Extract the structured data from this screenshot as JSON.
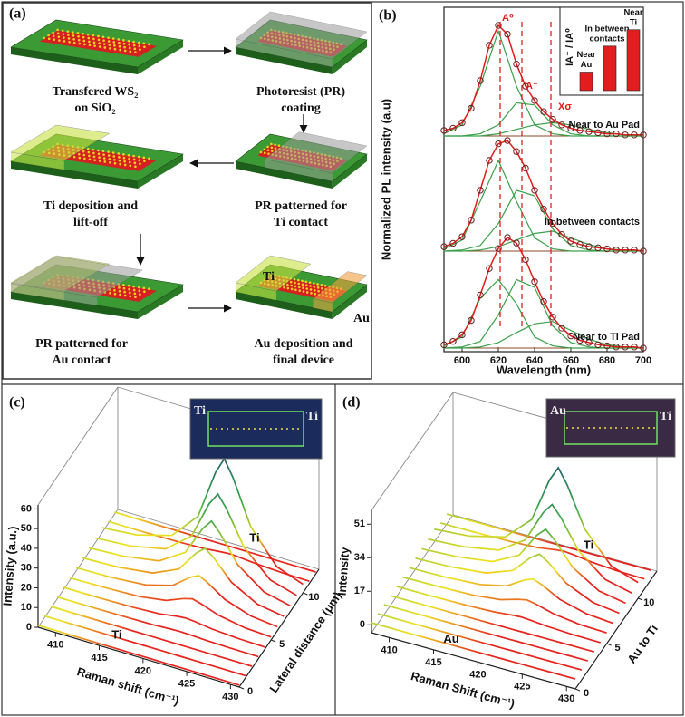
{
  "panel_a": {
    "label": "(a)",
    "steps": [
      {
        "lines": [
          "Transfered WS₂",
          "on SiO₂"
        ]
      },
      {
        "lines": [
          "Photoresist (PR)",
          "coating"
        ]
      },
      {
        "lines": [
          "PR patterned for",
          "Ti contact"
        ]
      },
      {
        "lines": [
          "Ti deposition and",
          "lift-off"
        ]
      },
      {
        "lines": [
          "PR patterned for",
          "Au contact"
        ]
      },
      {
        "lines": [
          "Au deposition and",
          "final device"
        ]
      }
    ],
    "device_labels": [
      "Ti",
      "Au"
    ]
  },
  "chart_data": [
    {
      "type": "pl_spectra",
      "label": "(b)",
      "xlabel": "Wavelength (nm)",
      "ylabel": "Normalized PL intensity (a.u)",
      "xlim": [
        590,
        700
      ],
      "xticks": [
        600,
        620,
        640,
        660,
        680,
        700
      ],
      "x": [
        590,
        595,
        600,
        605,
        610,
        615,
        620,
        625,
        630,
        635,
        640,
        645,
        650,
        655,
        660,
        665,
        670,
        675,
        680,
        685,
        690,
        695,
        700
      ],
      "component_x": [
        590,
        600,
        610,
        620,
        630,
        640,
        650,
        660,
        670,
        680,
        690,
        700
      ],
      "markers": [
        {
          "value": 621,
          "label": "A⁰"
        },
        {
          "value": 633,
          "label": "A⁻"
        },
        {
          "value": 649,
          "label": "Xσ"
        }
      ],
      "data_color": "#6b1e1e",
      "fit_color": "#e21d1d",
      "component_color": "#3aa04a",
      "baseline_color": "#8b4a2a",
      "marker_color": "#e21d1d",
      "series": [
        {
          "name": "Near to Au Pad",
          "values": [
            0.05,
            0.07,
            0.12,
            0.25,
            0.5,
            0.82,
            1.0,
            0.92,
            0.65,
            0.45,
            0.32,
            0.22,
            0.15,
            0.1,
            0.07,
            0.05,
            0.04,
            0.03,
            0.02,
            0.02,
            0.01,
            0.01,
            0.01
          ],
          "components": [
            [
              0.02,
              0.1,
              0.45,
              0.95,
              0.45,
              0.1,
              0.02,
              0,
              0,
              0,
              0,
              0
            ],
            [
              0,
              0,
              0.02,
              0.1,
              0.3,
              0.28,
              0.1,
              0.02,
              0,
              0,
              0,
              0
            ],
            [
              0,
              0,
              0,
              0.02,
              0.06,
              0.1,
              0.12,
              0.1,
              0.06,
              0.03,
              0.01,
              0
            ]
          ]
        },
        {
          "name": "In between contacts",
          "values": [
            0.04,
            0.07,
            0.13,
            0.28,
            0.55,
            0.82,
            0.97,
            1.0,
            0.9,
            0.75,
            0.55,
            0.38,
            0.25,
            0.15,
            0.09,
            0.06,
            0.04,
            0.03,
            0.02,
            0.01,
            0.01,
            0.01,
            0
          ],
          "components": [
            [
              0.02,
              0.1,
              0.45,
              0.82,
              0.45,
              0.12,
              0.02,
              0,
              0,
              0,
              0,
              0
            ],
            [
              0,
              0.01,
              0.05,
              0.25,
              0.55,
              0.5,
              0.2,
              0.05,
              0.01,
              0,
              0,
              0
            ],
            [
              0,
              0,
              0.01,
              0.04,
              0.1,
              0.16,
              0.18,
              0.12,
              0.06,
              0.02,
              0.01,
              0
            ]
          ]
        },
        {
          "name": "Near to Ti Pad",
          "values": [
            0.03,
            0.06,
            0.12,
            0.25,
            0.48,
            0.72,
            0.9,
            1.0,
            0.95,
            0.8,
            0.6,
            0.42,
            0.28,
            0.18,
            0.11,
            0.07,
            0.05,
            0.03,
            0.02,
            0.01,
            0.01,
            0.01,
            0
          ],
          "components": [
            [
              0.02,
              0.1,
              0.45,
              0.62,
              0.4,
              0.1,
              0.02,
              0,
              0,
              0,
              0,
              0
            ],
            [
              0,
              0.01,
              0.06,
              0.3,
              0.62,
              0.55,
              0.2,
              0.05,
              0.01,
              0,
              0,
              0
            ],
            [
              0,
              0,
              0.01,
              0.05,
              0.14,
              0.22,
              0.24,
              0.16,
              0.08,
              0.03,
              0.01,
              0
            ]
          ]
        }
      ]
    },
    {
      "type": "bar",
      "ylabel": "IA⁻ / IA⁰",
      "categories": [
        [
          "Near",
          "Au"
        ],
        [
          "In between",
          "contacts"
        ],
        [
          "Near",
          "Ti"
        ]
      ],
      "values": [
        0.25,
        0.6,
        0.82
      ],
      "ylim": [
        0,
        1
      ],
      "color": "#e21d1d"
    },
    {
      "type": "waterfall3d",
      "label": "(c)",
      "xlabel": "Raman shift (cm⁻¹)",
      "ylabel": "Intensity (a.u.)",
      "zlabel": "Lateral distance (μm)",
      "xlim": [
        408,
        431
      ],
      "xticks": [
        410,
        415,
        420,
        425,
        430
      ],
      "ylim": [
        0,
        62
      ],
      "yticks": [
        0,
        10,
        20,
        30,
        40,
        50,
        60
      ],
      "zlim": [
        0,
        12.5
      ],
      "zticks": [
        0,
        5,
        10
      ],
      "front_label": "Ti",
      "back_label": "Ti",
      "inset_labels": [
        "Ti",
        "Ti"
      ],
      "colormap": [
        "#e8231c",
        "#f0e21e",
        "#3da84a",
        "#1d5c6e"
      ],
      "x": [
        408,
        412,
        416,
        419,
        421,
        422,
        423,
        425,
        428,
        431
      ],
      "z": [
        0,
        1,
        2,
        3,
        4,
        5,
        6,
        7,
        8,
        9,
        10,
        11,
        12
      ],
      "traces": [
        [
          1,
          1,
          1,
          1,
          1,
          1,
          1,
          1,
          1,
          1
        ],
        [
          1,
          1,
          1,
          1,
          1,
          1,
          1,
          1,
          1,
          1
        ],
        [
          1,
          1,
          1,
          1,
          1,
          1,
          1,
          1,
          1,
          1
        ],
        [
          1,
          1.1,
          1.2,
          1.4,
          1.9,
          2,
          1.9,
          1.5,
          1.2,
          1.1
        ],
        [
          1.1,
          1.2,
          1.5,
          2.2,
          3.6,
          4,
          3.6,
          2.4,
          1.5,
          1.2
        ],
        [
          1.2,
          1.5,
          2.2,
          4.2,
          7.8,
          9,
          7.8,
          4.6,
          2.2,
          1.5
        ],
        [
          1.5,
          1.9,
          3.3,
          7,
          13.8,
          16,
          13.8,
          7.8,
          3.3,
          1.9
        ],
        [
          1.7,
          2.4,
          4.6,
          10.6,
          21.4,
          25,
          21.4,
          11.8,
          4.6,
          2.4
        ],
        [
          2,
          3,
          6,
          14.2,
          29,
          34,
          29,
          15.9,
          6,
          3
        ],
        [
          2.3,
          3.5,
          7.3,
          17.8,
          36.7,
          43,
          36.7,
          19.9,
          7.3,
          3.5
        ],
        [
          2.7,
          4.3,
          9.3,
          23,
          47.8,
          56,
          47.8,
          25.8,
          9.3,
          4.3
        ],
        [
          1.1,
          1.1,
          1.3,
          1.8,
          2.7,
          3,
          2.7,
          1.9,
          1.3,
          1.1
        ],
        [
          1,
          1,
          1,
          1,
          1,
          1,
          1,
          1,
          1,
          1
        ]
      ]
    },
    {
      "type": "waterfall3d",
      "label": "(d)",
      "xlabel": "Raman Shift (cm⁻¹)",
      "ylabel": "Intensity",
      "zlabel": "Au to Ti",
      "xlim": [
        408,
        431
      ],
      "xticks": [
        410,
        415,
        420,
        425,
        430
      ],
      "ylim": [
        -4,
        58
      ],
      "yticks": [
        0,
        17,
        34,
        51
      ],
      "zlim": [
        0,
        13
      ],
      "zticks": [
        0,
        5,
        10
      ],
      "front_label": "Au",
      "back_label": "Ti",
      "inset_labels": [
        "Au",
        "Ti"
      ],
      "colormap": [
        "#e8231c",
        "#f0e21e",
        "#3da84a",
        "#1d5c6e"
      ],
      "x": [
        408,
        412,
        416,
        419,
        421,
        422,
        423,
        425,
        428,
        431
      ],
      "z": [
        0,
        1,
        2,
        3,
        4,
        5,
        6,
        7,
        8,
        9,
        10,
        11,
        12
      ],
      "traces": [
        [
          1,
          1,
          1,
          1,
          1,
          1,
          1,
          1,
          1,
          1
        ],
        [
          1,
          1,
          1,
          1,
          1,
          1,
          1,
          1,
          1,
          1
        ],
        [
          1,
          1,
          1,
          1,
          1,
          1,
          1,
          1,
          1,
          1
        ],
        [
          1,
          1,
          1,
          1,
          1,
          1,
          1,
          1,
          1,
          1
        ],
        [
          1.1,
          1.1,
          1.3,
          1.8,
          2.7,
          3,
          2.7,
          1.9,
          1.3,
          1.1
        ],
        [
          1.2,
          1.4,
          1.9,
          3.4,
          6.1,
          7,
          6.1,
          3.7,
          1.9,
          1.4
        ],
        [
          1.4,
          1.7,
          2.8,
          5.8,
          11.2,
          13,
          11.2,
          6.4,
          2.8,
          1.7
        ],
        [
          1.6,
          2.2,
          4,
          9,
          18,
          21,
          18,
          10,
          4,
          2.2
        ],
        [
          1.8,
          2.7,
          5.2,
          12.2,
          24.8,
          29,
          24.8,
          13.6,
          5.2,
          2.7
        ],
        [
          2.1,
          3.2,
          6.4,
          15.4,
          31.6,
          37,
          31.6,
          17.2,
          6.4,
          3.2
        ],
        [
          2.5,
          4,
          8.5,
          21,
          43.5,
          51,
          43.5,
          23.5,
          8.5,
          4
        ],
        [
          1.1,
          1.2,
          1.5,
          2.2,
          3.6,
          4,
          3.6,
          2.4,
          1.5,
          1.2
        ],
        [
          1,
          1,
          1,
          1,
          1,
          1,
          1,
          1,
          1,
          1
        ]
      ]
    }
  ]
}
